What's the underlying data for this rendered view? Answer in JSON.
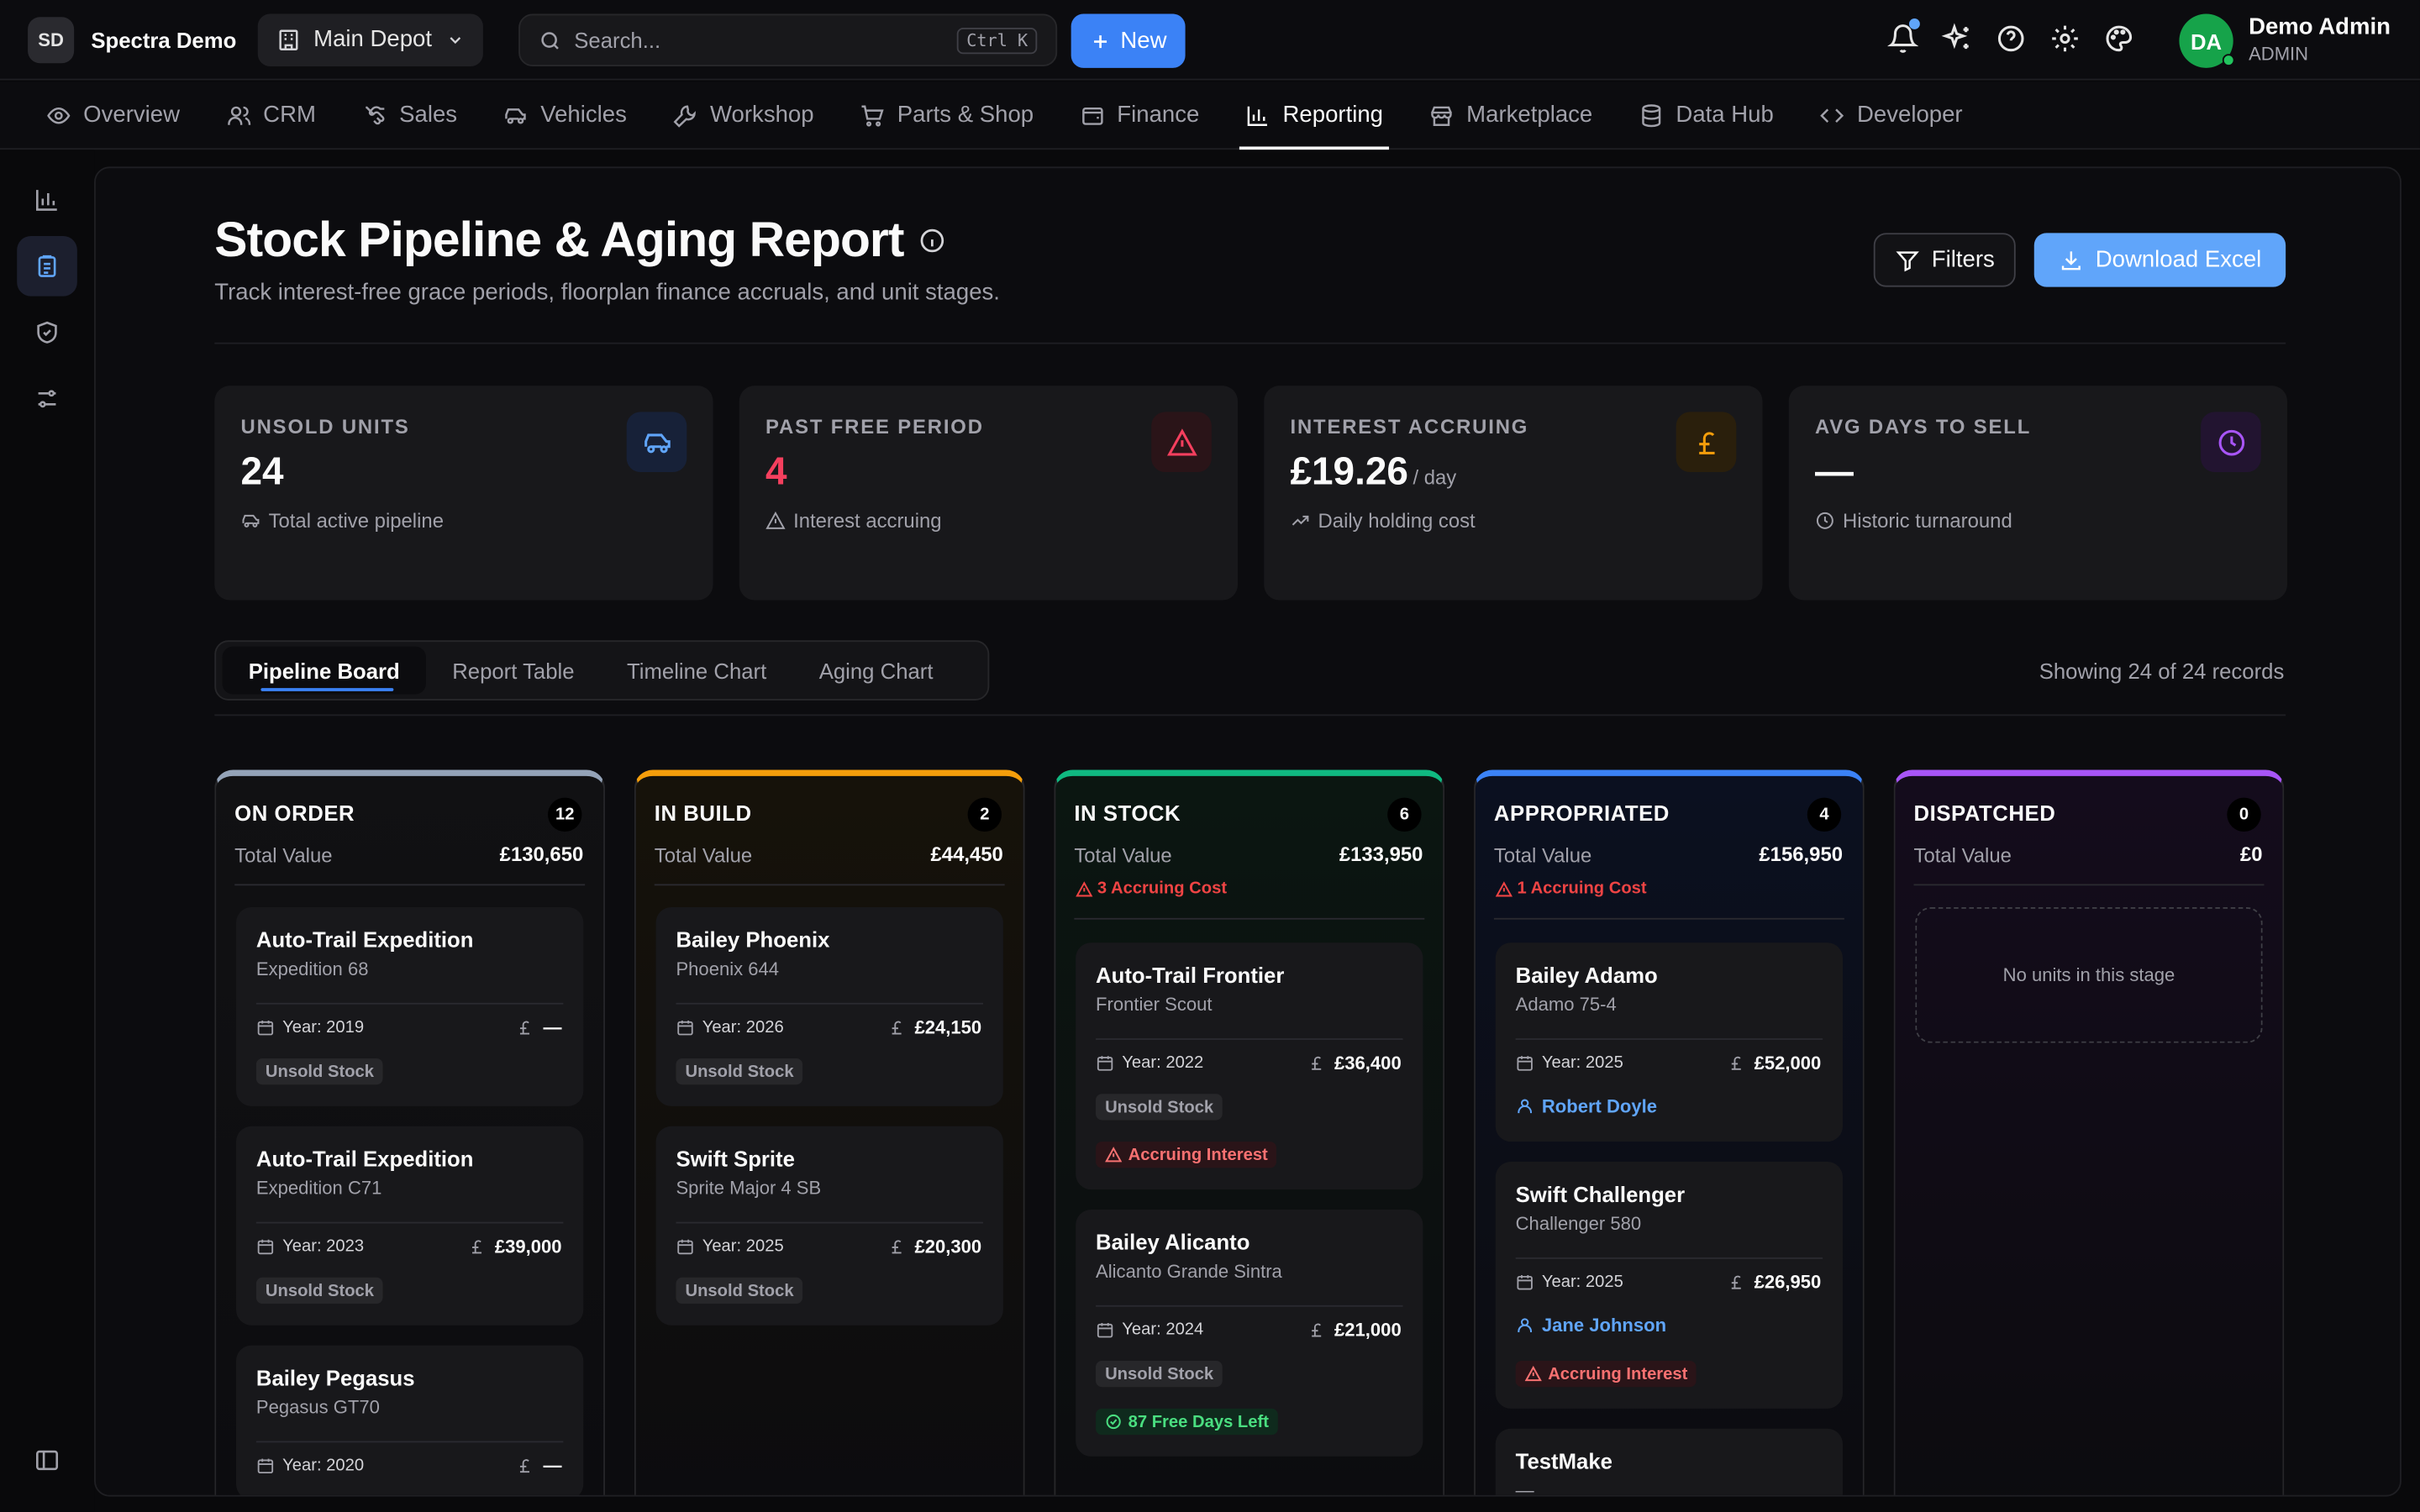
{
  "brand": {
    "initials": "SD",
    "name": "Spectra Demo"
  },
  "depot": {
    "label": "Main Depot"
  },
  "search": {
    "placeholder": "Search...",
    "shortcut": "Ctrl K"
  },
  "new_label": "New",
  "user": {
    "initials": "DA",
    "name": "Demo Admin",
    "role": "ADMIN"
  },
  "nav": [
    "Overview",
    "CRM",
    "Sales",
    "Vehicles",
    "Workshop",
    "Parts & Shop",
    "Finance",
    "Reporting",
    "Marketplace",
    "Data Hub",
    "Developer"
  ],
  "page": {
    "title": "Stock Pipeline & Aging Report",
    "subtitle": "Track interest-free grace periods, floorplan finance accruals, and unit stages.",
    "filters_label": "Filters",
    "download_label": "Download Excel"
  },
  "stats": [
    {
      "label": "UNSOLD UNITS",
      "value": "24",
      "unit": "",
      "note": "Total active pipeline",
      "color": "#60a5fa"
    },
    {
      "label": "PAST FREE PERIOD",
      "value": "4",
      "unit": "",
      "note": "Interest accruing",
      "color": "#f43f5e"
    },
    {
      "label": "INTEREST ACCRUING",
      "value": "£19.26",
      "unit": "/ day",
      "note": "Daily holding cost",
      "color": "#f59e0b"
    },
    {
      "label": "AVG DAYS TO SELL",
      "value": "—",
      "unit": "",
      "note": "Historic turnaround",
      "color": "#a855f7"
    }
  ],
  "tabs": [
    "Pipeline Board",
    "Report Table",
    "Timeline Chart",
    "Aging Chart"
  ],
  "records": "Showing 24 of 24 records",
  "columns": [
    {
      "name": "ON ORDER",
      "count": "12",
      "total_label": "Total Value",
      "total": "£130,650",
      "warn": "",
      "color": "#94a3b8",
      "cards": [
        {
          "make": "Auto-Trail Expedition",
          "model": "Expedition 68",
          "year": "Year: 2019",
          "price": "—",
          "badges": [
            "Unsold Stock"
          ],
          "assignee": "",
          "interest": "",
          "free": ""
        },
        {
          "make": "Auto-Trail Expedition",
          "model": "Expedition C71",
          "year": "Year: 2023",
          "price": "£39,000",
          "badges": [
            "Unsold Stock"
          ],
          "assignee": "",
          "interest": "",
          "free": ""
        },
        {
          "make": "Bailey Pegasus",
          "model": "Pegasus GT70",
          "year": "Year: 2020",
          "price": "—",
          "badges": [],
          "assignee": "",
          "interest": "",
          "free": ""
        }
      ]
    },
    {
      "name": "IN BUILD",
      "count": "2",
      "total_label": "Total Value",
      "total": "£44,450",
      "warn": "",
      "color": "#f59e0b",
      "cards": [
        {
          "make": "Bailey Phoenix",
          "model": "Phoenix 644",
          "year": "Year: 2026",
          "price": "£24,150",
          "badges": [
            "Unsold Stock"
          ],
          "assignee": "",
          "interest": "",
          "free": ""
        },
        {
          "make": "Swift Sprite",
          "model": "Sprite Major 4 SB",
          "year": "Year: 2025",
          "price": "£20,300",
          "badges": [
            "Unsold Stock"
          ],
          "assignee": "",
          "interest": "",
          "free": ""
        }
      ]
    },
    {
      "name": "IN STOCK",
      "count": "6",
      "total_label": "Total Value",
      "total": "£133,950",
      "warn": "3 Accruing Cost",
      "color": "#10b981",
      "cards": [
        {
          "make": "Auto-Trail Frontier",
          "model": "Frontier Scout",
          "year": "Year: 2022",
          "price": "£36,400",
          "badges": [
            "Unsold Stock"
          ],
          "assignee": "",
          "interest": "Accruing Interest",
          "free": ""
        },
        {
          "make": "Bailey Alicanto",
          "model": "Alicanto Grande Sintra",
          "year": "Year: 2024",
          "price": "£21,000",
          "badges": [
            "Unsold Stock"
          ],
          "assignee": "",
          "interest": "",
          "free": "87 Free Days Left"
        }
      ]
    },
    {
      "name": "APPROPRIATED",
      "count": "4",
      "total_label": "Total Value",
      "total": "£156,950",
      "warn": "1 Accruing Cost",
      "color": "#3b82f6",
      "cards": [
        {
          "make": "Bailey Adamo",
          "model": "Adamo 75-4",
          "year": "Year: 2025",
          "price": "£52,000",
          "badges": [],
          "assignee": "Robert Doyle",
          "interest": "",
          "free": ""
        },
        {
          "make": "Swift Challenger",
          "model": "Challenger 580",
          "year": "Year: 2025",
          "price": "£26,950",
          "badges": [],
          "assignee": "Jane Johnson",
          "interest": "Accruing Interest",
          "free": ""
        },
        {
          "make": "TestMake",
          "model": "—",
          "year": "",
          "price": "",
          "badges": [],
          "assignee": "",
          "interest": "",
          "free": ""
        }
      ]
    },
    {
      "name": "DISPATCHED",
      "count": "0",
      "total_label": "Total Value",
      "total": "£0",
      "warn": "",
      "color": "#a855f7",
      "empty": "No units in this stage",
      "cards": []
    }
  ]
}
